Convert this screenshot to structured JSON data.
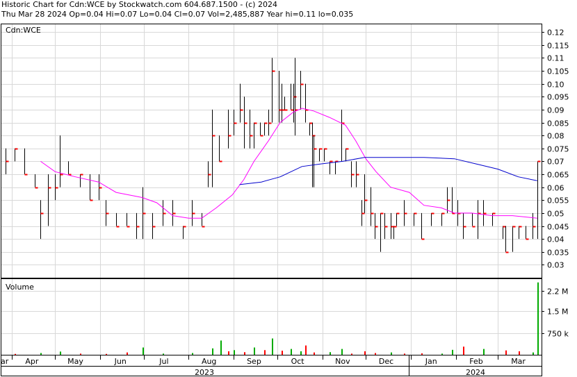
{
  "header": {
    "line1": "Historic Chart for Cdn:WCE by Stockwatch.com 604.687.1500 - (c) 2024",
    "line2": "Thu Mar 28 2024  Op=0.04  Hi=0.07  Lo=0.04  Cl=0.07  Vol=2,485,887  Year hi=0.11  lo=0.035"
  },
  "colors": {
    "price_bar": "#000000",
    "close_tick": "#ff0000",
    "ma_short": "#ff00ff",
    "ma_long": "#0000cc",
    "volume_up": "#00aa00",
    "volume_down": "#ff0000",
    "grid": "#d8d8d8"
  },
  "chart_data": [
    {
      "type": "ohlc",
      "label": "Cdn:WCE",
      "ylim": [
        0.025,
        0.123
      ],
      "y_ticks": [
        "0.12",
        "0.115",
        "0.11",
        "0.105",
        "0.10",
        "0.095",
        "0.09",
        "0.085",
        "0.08",
        "0.075",
        "0.07",
        "0.065",
        "0.06",
        "0.055",
        "0.05",
        "0.045",
        "0.04",
        "0.035",
        "0.03"
      ],
      "x_tick_labels": [
        "ar",
        "Apr",
        "May",
        "Jun",
        "Jul",
        "Aug",
        "Sep",
        "Oct",
        "Nov",
        "Dec",
        "Jan",
        "Feb",
        "Mar"
      ],
      "year_labels": [
        "2023",
        "2024"
      ],
      "grid": true,
      "bars": [
        {
          "x": "2023-03-28",
          "h": 0.075,
          "l": 0.065,
          "c": 0.07
        },
        {
          "x": "2023-04-03",
          "h": 0.075,
          "l": 0.07,
          "c": 0.075
        },
        {
          "x": "2023-04-10",
          "h": 0.075,
          "l": 0.065,
          "c": 0.065
        },
        {
          "x": "2023-04-17",
          "h": 0.065,
          "l": 0.06,
          "c": 0.06
        },
        {
          "x": "2023-04-21",
          "h": 0.055,
          "l": 0.04,
          "c": 0.05
        },
        {
          "x": "2023-04-26",
          "h": 0.065,
          "l": 0.045,
          "c": 0.06
        },
        {
          "x": "2023-05-01",
          "h": 0.065,
          "l": 0.055,
          "c": 0.06
        },
        {
          "x": "2023-05-04",
          "h": 0.08,
          "l": 0.06,
          "c": 0.065
        },
        {
          "x": "2023-05-10",
          "h": 0.07,
          "l": 0.065,
          "c": 0.065
        },
        {
          "x": "2023-05-18",
          "h": 0.065,
          "l": 0.06,
          "c": 0.065
        },
        {
          "x": "2023-05-25",
          "h": 0.065,
          "l": 0.055,
          "c": 0.055
        },
        {
          "x": "2023-05-31",
          "h": 0.065,
          "l": 0.055,
          "c": 0.06
        },
        {
          "x": "2023-06-05",
          "h": 0.055,
          "l": 0.045,
          "c": 0.05
        },
        {
          "x": "2023-06-12",
          "h": 0.05,
          "l": 0.045,
          "c": 0.045
        },
        {
          "x": "2023-06-19",
          "h": 0.05,
          "l": 0.045,
          "c": 0.045
        },
        {
          "x": "2023-06-26",
          "h": 0.05,
          "l": 0.04,
          "c": 0.045
        },
        {
          "x": "2023-06-30",
          "h": 0.06,
          "l": 0.04,
          "c": 0.05
        },
        {
          "x": "2023-07-07",
          "h": 0.05,
          "l": 0.04,
          "c": 0.045
        },
        {
          "x": "2023-07-14",
          "h": 0.055,
          "l": 0.045,
          "c": 0.05
        },
        {
          "x": "2023-07-21",
          "h": 0.055,
          "l": 0.045,
          "c": 0.05
        },
        {
          "x": "2023-07-28",
          "h": 0.045,
          "l": 0.04,
          "c": 0.045
        },
        {
          "x": "2023-08-03",
          "h": 0.055,
          "l": 0.045,
          "c": 0.05
        },
        {
          "x": "2023-08-10",
          "h": 0.05,
          "l": 0.045,
          "c": 0.045
        },
        {
          "x": "2023-08-14",
          "h": 0.07,
          "l": 0.06,
          "c": 0.065
        },
        {
          "x": "2023-08-17",
          "h": 0.09,
          "l": 0.06,
          "c": 0.08
        },
        {
          "x": "2023-08-22",
          "h": 0.08,
          "l": 0.07,
          "c": 0.07
        },
        {
          "x": "2023-08-28",
          "h": 0.09,
          "l": 0.075,
          "c": 0.08
        },
        {
          "x": "2023-09-01",
          "h": 0.09,
          "l": 0.08,
          "c": 0.085
        },
        {
          "x": "2023-09-05",
          "h": 0.1,
          "l": 0.085,
          "c": 0.09
        },
        {
          "x": "2023-09-08",
          "h": 0.095,
          "l": 0.075,
          "c": 0.085
        },
        {
          "x": "2023-09-12",
          "h": 0.09,
          "l": 0.075,
          "c": 0.08
        },
        {
          "x": "2023-09-15",
          "h": 0.085,
          "l": 0.075,
          "c": 0.085
        },
        {
          "x": "2023-09-19",
          "h": 0.085,
          "l": 0.08,
          "c": 0.08
        },
        {
          "x": "2023-09-22",
          "h": 0.085,
          "l": 0.08,
          "c": 0.085
        },
        {
          "x": "2023-09-25",
          "h": 0.09,
          "l": 0.08,
          "c": 0.085
        },
        {
          "x": "2023-09-27",
          "h": 0.11,
          "l": 0.085,
          "c": 0.105
        },
        {
          "x": "2023-10-02",
          "h": 0.105,
          "l": 0.085,
          "c": 0.09
        },
        {
          "x": "2023-10-04",
          "h": 0.1,
          "l": 0.085,
          "c": 0.09
        },
        {
          "x": "2023-10-06",
          "h": 0.095,
          "l": 0.09,
          "c": 0.09
        },
        {
          "x": "2023-10-10",
          "h": 0.1,
          "l": 0.09,
          "c": 0.09
        },
        {
          "x": "2023-10-12",
          "h": 0.1,
          "l": 0.085,
          "c": 0.095
        },
        {
          "x": "2023-10-13",
          "h": 0.11,
          "l": 0.08,
          "c": 0.09
        },
        {
          "x": "2023-10-17",
          "h": 0.105,
          "l": 0.09,
          "c": 0.1
        },
        {
          "x": "2023-10-20",
          "h": 0.1,
          "l": 0.085,
          "c": 0.09
        },
        {
          "x": "2023-10-23",
          "h": 0.085,
          "l": 0.08,
          "c": 0.085
        },
        {
          "x": "2023-10-25",
          "h": 0.085,
          "l": 0.06,
          "c": 0.08
        },
        {
          "x": "2023-10-26",
          "h": 0.08,
          "l": 0.06,
          "c": 0.075
        },
        {
          "x": "2023-10-30",
          "h": 0.075,
          "l": 0.07,
          "c": 0.075
        },
        {
          "x": "2023-11-02",
          "h": 0.075,
          "l": 0.07,
          "c": 0.075
        },
        {
          "x": "2023-11-06",
          "h": 0.07,
          "l": 0.065,
          "c": 0.07
        },
        {
          "x": "2023-11-10",
          "h": 0.07,
          "l": 0.065,
          "c": 0.07
        },
        {
          "x": "2023-11-14",
          "h": 0.09,
          "l": 0.07,
          "c": 0.085
        },
        {
          "x": "2023-11-17",
          "h": 0.075,
          "l": 0.07,
          "c": 0.075
        },
        {
          "x": "2023-11-21",
          "h": 0.07,
          "l": 0.06,
          "c": 0.065
        },
        {
          "x": "2023-11-24",
          "h": 0.07,
          "l": 0.06,
          "c": 0.065
        },
        {
          "x": "2023-11-28",
          "h": 0.055,
          "l": 0.045,
          "c": 0.05
        },
        {
          "x": "2023-11-30",
          "h": 0.065,
          "l": 0.05,
          "c": 0.055
        },
        {
          "x": "2023-12-04",
          "h": 0.06,
          "l": 0.045,
          "c": 0.05
        },
        {
          "x": "2023-12-07",
          "h": 0.05,
          "l": 0.04,
          "c": 0.045
        },
        {
          "x": "2023-12-11",
          "h": 0.05,
          "l": 0.035,
          "c": 0.05
        },
        {
          "x": "2023-12-14",
          "h": 0.05,
          "l": 0.04,
          "c": 0.045
        },
        {
          "x": "2023-12-18",
          "h": 0.05,
          "l": 0.04,
          "c": 0.045
        },
        {
          "x": "2023-12-20",
          "h": 0.045,
          "l": 0.04,
          "c": 0.045
        },
        {
          "x": "2023-12-22",
          "h": 0.05,
          "l": 0.045,
          "c": 0.05
        },
        {
          "x": "2023-12-27",
          "h": 0.055,
          "l": 0.045,
          "c": 0.05
        },
        {
          "x": "2024-01-03",
          "h": 0.05,
          "l": 0.045,
          "c": 0.05
        },
        {
          "x": "2024-01-08",
          "h": 0.05,
          "l": 0.04,
          "c": 0.04
        },
        {
          "x": "2024-01-15",
          "h": 0.05,
          "l": 0.045,
          "c": 0.05
        },
        {
          "x": "2024-01-22",
          "h": 0.05,
          "l": 0.045,
          "c": 0.05
        },
        {
          "x": "2024-01-26",
          "h": 0.06,
          "l": 0.05,
          "c": 0.055
        },
        {
          "x": "2024-01-29",
          "h": 0.06,
          "l": 0.05,
          "c": 0.05
        },
        {
          "x": "2024-02-02",
          "h": 0.055,
          "l": 0.045,
          "c": 0.05
        },
        {
          "x": "2024-02-06",
          "h": 0.05,
          "l": 0.04,
          "c": 0.045
        },
        {
          "x": "2024-02-12",
          "h": 0.05,
          "l": 0.045,
          "c": 0.045
        },
        {
          "x": "2024-02-16",
          "h": 0.055,
          "l": 0.04,
          "c": 0.05
        },
        {
          "x": "2024-02-20",
          "h": 0.055,
          "l": 0.045,
          "c": 0.05
        },
        {
          "x": "2024-02-26",
          "h": 0.05,
          "l": 0.045,
          "c": 0.05
        },
        {
          "x": "2024-03-04",
          "h": 0.045,
          "l": 0.04,
          "c": 0.045
        },
        {
          "x": "2024-03-06",
          "h": 0.045,
          "l": 0.035,
          "c": 0.035
        },
        {
          "x": "2024-03-11",
          "h": 0.045,
          "l": 0.035,
          "c": 0.045
        },
        {
          "x": "2024-03-15",
          "h": 0.045,
          "l": 0.04,
          "c": 0.045
        },
        {
          "x": "2024-03-20",
          "h": 0.045,
          "l": 0.04,
          "c": 0.04
        },
        {
          "x": "2024-03-25",
          "h": 0.05,
          "l": 0.04,
          "c": 0.045
        },
        {
          "x": "2024-03-28",
          "h": 0.07,
          "l": 0.04,
          "c": 0.07
        }
      ],
      "series": [
        {
          "type": "line",
          "color": "#ff00ff",
          "points": [
            [
              "2023-04-21",
              0.07
            ],
            [
              "2023-05-01",
              0.066
            ],
            [
              "2023-05-15",
              0.064
            ],
            [
              "2023-05-31",
              0.062
            ],
            [
              "2023-06-12",
              0.058
            ],
            [
              "2023-06-30",
              0.056
            ],
            [
              "2023-07-10",
              0.054
            ],
            [
              "2023-07-21",
              0.049
            ],
            [
              "2023-08-01",
              0.048
            ],
            [
              "2023-08-10",
              0.048
            ],
            [
              "2023-08-20",
              0.052
            ],
            [
              "2023-08-31",
              0.057
            ],
            [
              "2023-09-08",
              0.063
            ],
            [
              "2023-09-15",
              0.07
            ],
            [
              "2023-09-25",
              0.078
            ],
            [
              "2023-10-03",
              0.085
            ],
            [
              "2023-10-12",
              0.089
            ],
            [
              "2023-10-18",
              0.0905
            ],
            [
              "2023-10-26",
              0.0895
            ],
            [
              "2023-11-06",
              0.087
            ],
            [
              "2023-11-17",
              0.084
            ],
            [
              "2023-11-24",
              0.078
            ],
            [
              "2023-12-01",
              0.071
            ],
            [
              "2023-12-08",
              0.066
            ],
            [
              "2023-12-18",
              0.06
            ],
            [
              "2023-12-31",
              0.058
            ],
            [
              "2024-01-10",
              0.053
            ],
            [
              "2024-01-22",
              0.052
            ],
            [
              "2024-01-31",
              0.05
            ],
            [
              "2024-02-12",
              0.05
            ],
            [
              "2024-02-26",
              0.049
            ],
            [
              "2024-03-11",
              0.049
            ],
            [
              "2024-03-28",
              0.048
            ]
          ]
        },
        {
          "type": "line",
          "color": "#0000cc",
          "points": [
            [
              "2023-09-05",
              0.061
            ],
            [
              "2023-09-20",
              0.062
            ],
            [
              "2023-10-03",
              0.064
            ],
            [
              "2023-10-18",
              0.068
            ],
            [
              "2023-10-31",
              0.069
            ],
            [
              "2023-11-15",
              0.07
            ],
            [
              "2023-11-30",
              0.0715
            ],
            [
              "2023-12-20",
              0.0715
            ],
            [
              "2024-01-10",
              0.0715
            ],
            [
              "2024-01-31",
              0.071
            ],
            [
              "2024-02-15",
              0.069
            ],
            [
              "2024-03-01",
              0.067
            ],
            [
              "2024-03-15",
              0.064
            ],
            [
              "2024-03-28",
              0.0625
            ]
          ]
        }
      ]
    },
    {
      "type": "bar",
      "label": "Volume",
      "ylim": [
        0,
        2600000
      ],
      "y_ticks": [
        "2.2 M",
        "1.5 M",
        "750 k"
      ],
      "x_tick_labels": [
        "ar",
        "Apr",
        "May",
        "Jun",
        "Jul",
        "Aug",
        "Sep",
        "Oct",
        "Nov",
        "Dec",
        "Jan",
        "Feb",
        "Mar"
      ],
      "year_labels": [
        "2023",
        "2024"
      ],
      "values": [
        [
          "2023-04-03",
          30000,
          "d"
        ],
        [
          "2023-04-21",
          60000,
          "u"
        ],
        [
          "2023-05-04",
          110000,
          "u"
        ],
        [
          "2023-05-18",
          40000,
          "d"
        ],
        [
          "2023-06-05",
          30000,
          "d"
        ],
        [
          "2023-06-19",
          80000,
          "d"
        ],
        [
          "2023-06-30",
          250000,
          "u"
        ],
        [
          "2023-07-14",
          40000,
          "u"
        ],
        [
          "2023-08-03",
          60000,
          "u"
        ],
        [
          "2023-08-17",
          220000,
          "u"
        ],
        [
          "2023-08-23",
          490000,
          "u"
        ],
        [
          "2023-08-28",
          120000,
          "d"
        ],
        [
          "2023-09-01",
          160000,
          "u"
        ],
        [
          "2023-09-08",
          90000,
          "d"
        ],
        [
          "2023-09-15",
          250000,
          "u"
        ],
        [
          "2023-09-22",
          160000,
          "d"
        ],
        [
          "2023-09-27",
          560000,
          "u"
        ],
        [
          "2023-10-04",
          140000,
          "d"
        ],
        [
          "2023-10-10",
          200000,
          "u"
        ],
        [
          "2023-10-17",
          120000,
          "u"
        ],
        [
          "2023-10-20",
          320000,
          "d"
        ],
        [
          "2023-10-26",
          80000,
          "d"
        ],
        [
          "2023-11-06",
          90000,
          "u"
        ],
        [
          "2023-11-14",
          200000,
          "u"
        ],
        [
          "2023-11-21",
          40000,
          "d"
        ],
        [
          "2023-11-30",
          120000,
          "d"
        ],
        [
          "2023-12-07",
          60000,
          "d"
        ],
        [
          "2023-12-18",
          80000,
          "u"
        ],
        [
          "2023-12-27",
          40000,
          "d"
        ],
        [
          "2024-01-08",
          50000,
          "d"
        ],
        [
          "2024-01-22",
          40000,
          "u"
        ],
        [
          "2024-01-29",
          170000,
          "u"
        ],
        [
          "2024-02-06",
          280000,
          "d"
        ],
        [
          "2024-02-20",
          200000,
          "u"
        ],
        [
          "2024-03-06",
          150000,
          "d"
        ],
        [
          "2024-03-15",
          120000,
          "d"
        ],
        [
          "2024-03-25",
          80000,
          "u"
        ],
        [
          "2024-03-28",
          2485887,
          "u"
        ]
      ]
    }
  ]
}
